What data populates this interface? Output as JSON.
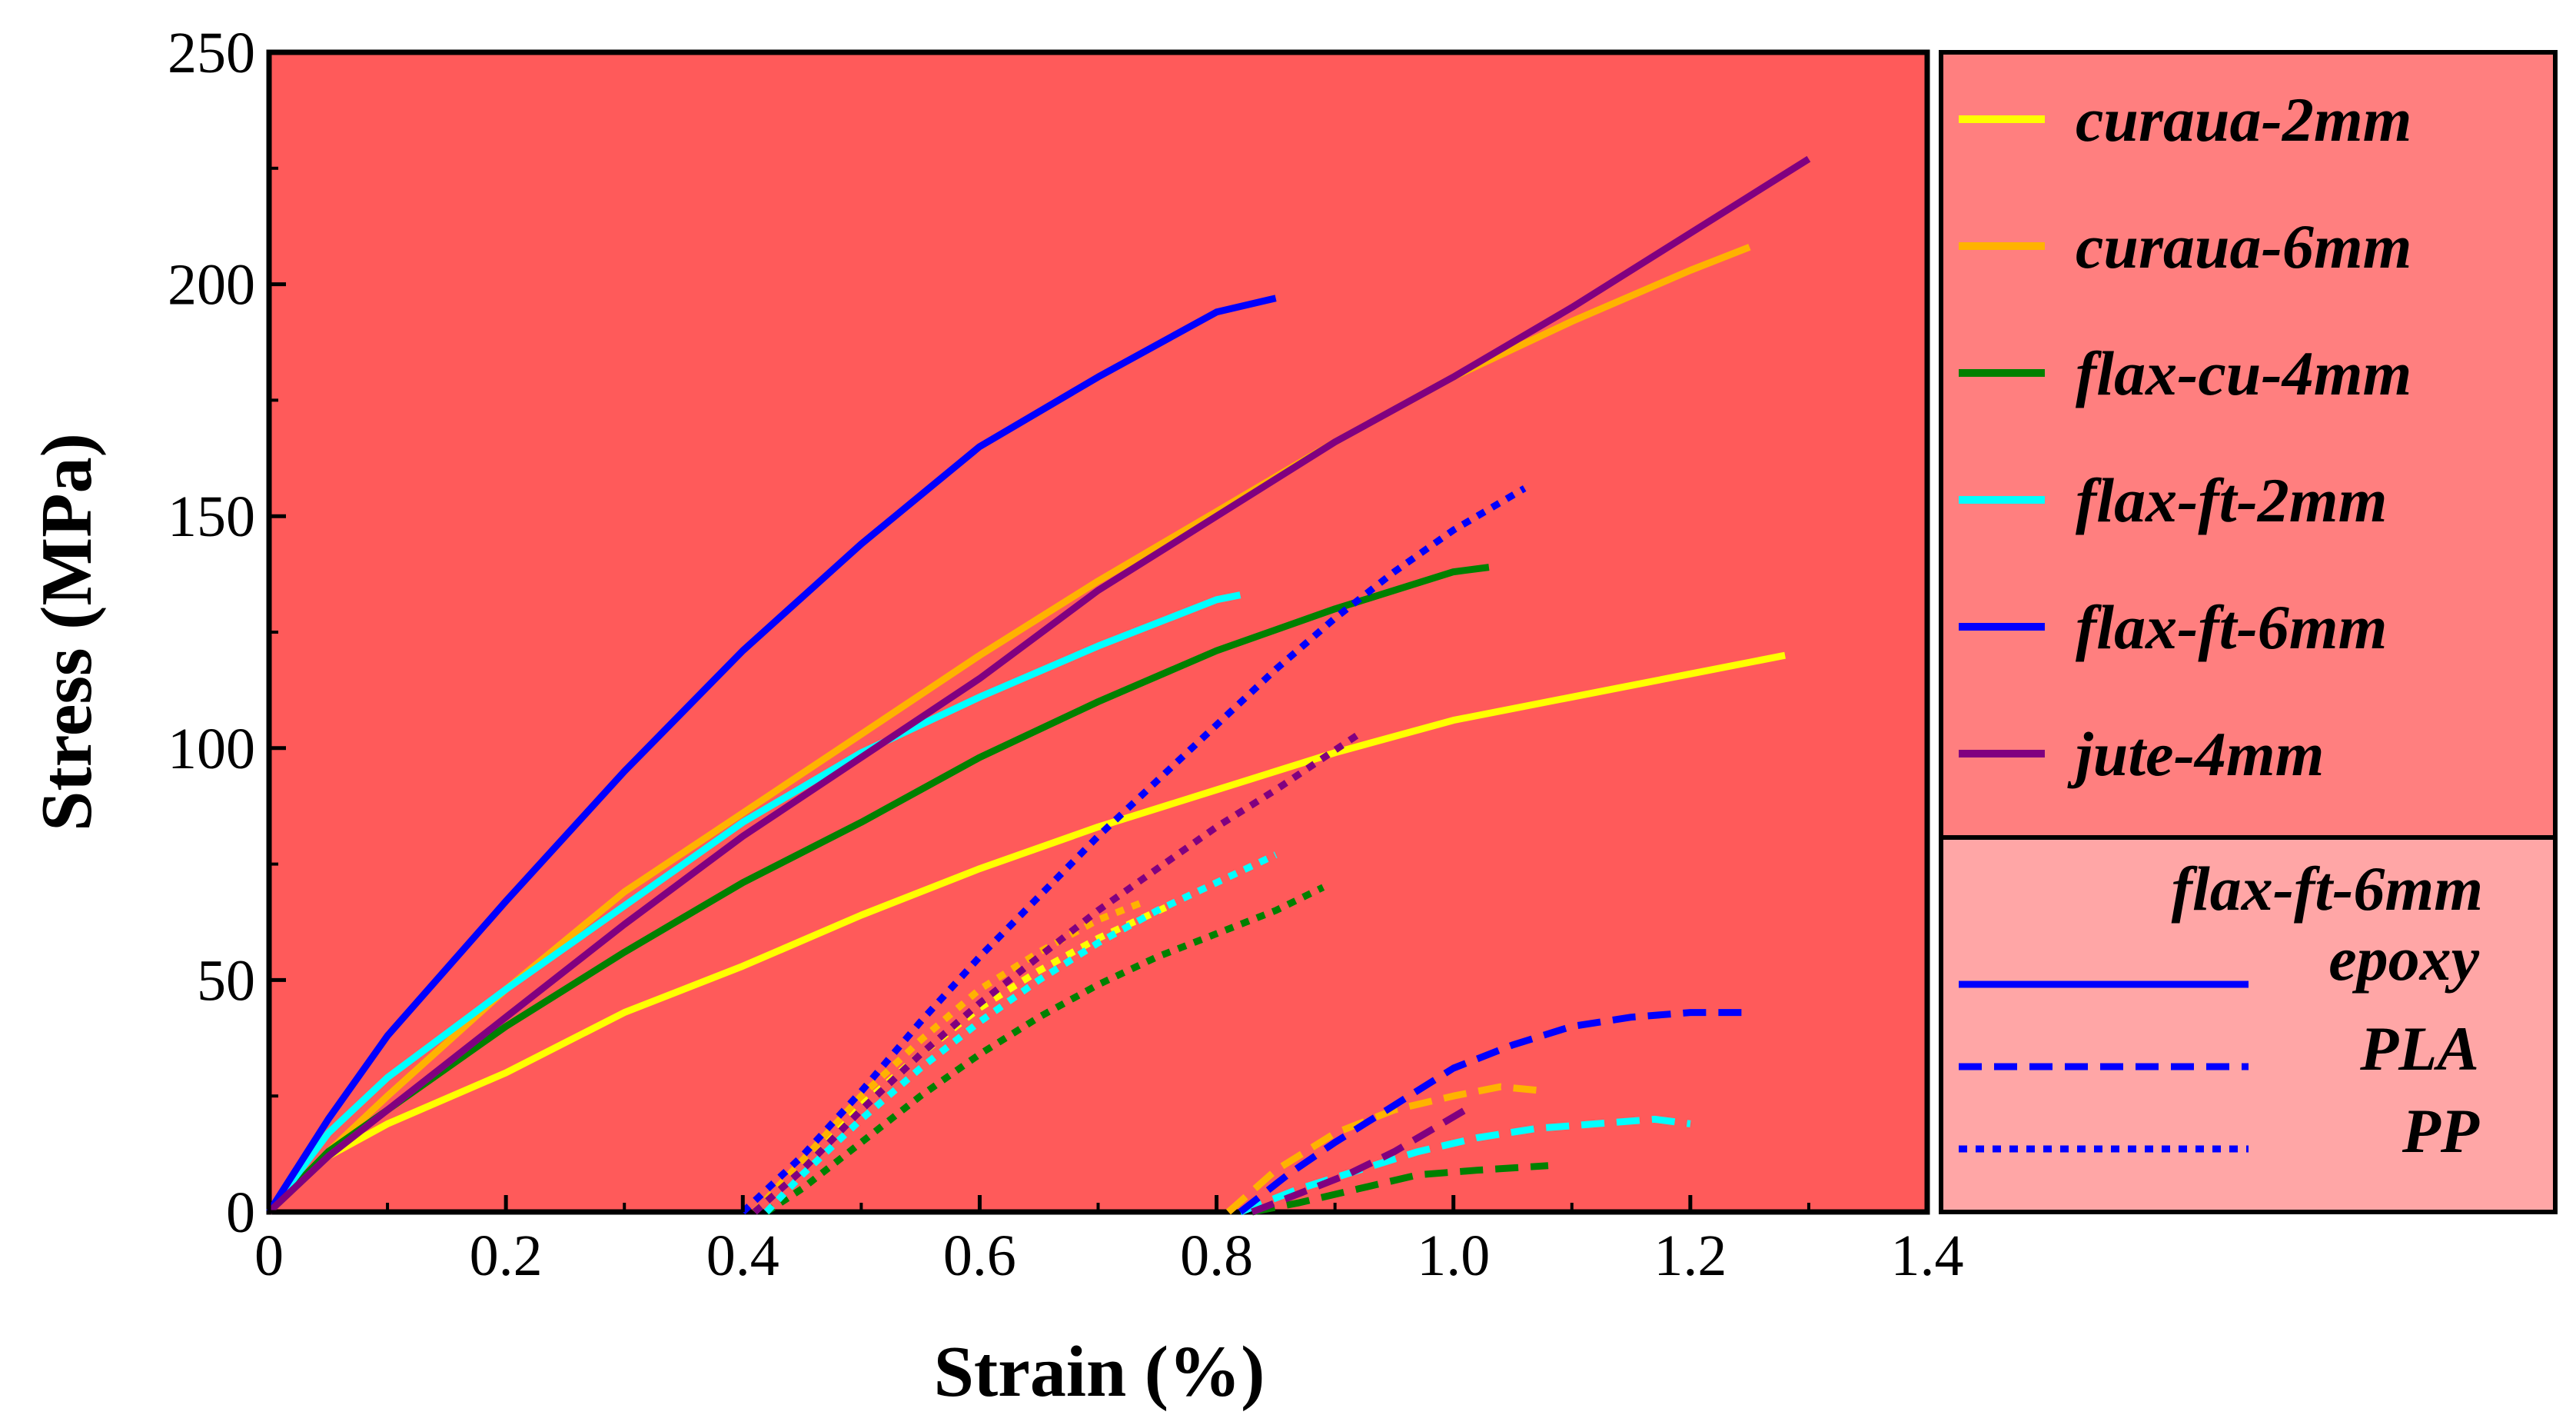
{
  "chart_data": {
    "type": "line",
    "title": "",
    "xlabel": "Strain (%)",
    "ylabel": "Stress (MPa)",
    "xlim": [
      0,
      1.4
    ],
    "ylim": [
      0,
      250
    ],
    "xticks": [
      "0",
      "0.2",
      "0.4",
      "0.6",
      "0.8",
      "1.0",
      "1.2",
      "1.4"
    ],
    "yticks": [
      "0",
      "50",
      "100",
      "150",
      "200",
      "250"
    ],
    "grid": false,
    "background_color": "#ff5a5a",
    "legend_background_color": "#ff7f7f",
    "legend_lower_background_color": "#ffa6a6",
    "legend_placement": "right",
    "legend_fibers": [
      {
        "label": "curaua-2mm",
        "color": "#ffff00"
      },
      {
        "label": "curaua-6mm",
        "color": "#ffb300"
      },
      {
        "label": "flax-cu-4mm",
        "color": "#008000"
      },
      {
        "label": "flax-ft-2mm",
        "color": "#00ffff"
      },
      {
        "label": "flax-ft-6mm",
        "color": "#0000ff"
      },
      {
        "label": "jute-4mm",
        "color": "#800080"
      }
    ],
    "legend_matrix_title": "flax-ft-6mm",
    "legend_matrices": [
      {
        "label": "epoxy",
        "style": "solid",
        "color": "#0000ff"
      },
      {
        "label": "PLA",
        "style": "dashed",
        "color": "#0000ff"
      },
      {
        "label": "PP",
        "style": "dotted",
        "color": "#0000ff"
      }
    ],
    "series": [
      {
        "name": "curaua-2mm epoxy",
        "color": "#ffff00",
        "style": "solid",
        "x": [
          0,
          0.05,
          0.1,
          0.2,
          0.3,
          0.4,
          0.5,
          0.6,
          0.7,
          0.8,
          0.9,
          1.0,
          1.1,
          1.2,
          1.28
        ],
        "y": [
          0,
          12,
          19,
          30,
          43,
          53,
          64,
          74,
          83,
          91,
          99,
          106,
          111,
          116,
          120
        ]
      },
      {
        "name": "curaua-6mm epoxy",
        "color": "#ffb300",
        "style": "solid",
        "x": [
          0,
          0.05,
          0.1,
          0.2,
          0.3,
          0.4,
          0.5,
          0.6,
          0.7,
          0.8,
          0.9,
          1.0,
          1.1,
          1.2,
          1.25
        ],
        "y": [
          0,
          13,
          25,
          48,
          69,
          86,
          103,
          120,
          136,
          151,
          166,
          180,
          192,
          203,
          208
        ]
      },
      {
        "name": "flax-cu-4mm epoxy",
        "color": "#008000",
        "style": "solid",
        "x": [
          0,
          0.05,
          0.1,
          0.2,
          0.3,
          0.4,
          0.5,
          0.6,
          0.7,
          0.8,
          0.9,
          1.0,
          1.03
        ],
        "y": [
          0,
          13,
          22,
          40,
          56,
          71,
          84,
          98,
          110,
          121,
          130,
          138,
          139
        ]
      },
      {
        "name": "flax-ft-2mm epoxy",
        "color": "#00ffff",
        "style": "solid",
        "x": [
          0,
          0.05,
          0.1,
          0.2,
          0.3,
          0.4,
          0.5,
          0.6,
          0.7,
          0.8,
          0.82
        ],
        "y": [
          0,
          17,
          29,
          48,
          66,
          84,
          99,
          111,
          122,
          132,
          133
        ]
      },
      {
        "name": "flax-ft-6mm epoxy",
        "color": "#0000ff",
        "style": "solid",
        "x": [
          0,
          0.05,
          0.1,
          0.2,
          0.3,
          0.4,
          0.5,
          0.6,
          0.7,
          0.8,
          0.85
        ],
        "y": [
          0,
          20,
          38,
          67,
          95,
          121,
          144,
          165,
          180,
          194,
          197
        ]
      },
      {
        "name": "jute-4mm epoxy",
        "color": "#800080",
        "style": "solid",
        "x": [
          0,
          0.05,
          0.1,
          0.2,
          0.3,
          0.4,
          0.5,
          0.6,
          0.7,
          0.8,
          0.9,
          1.0,
          1.1,
          1.2,
          1.3
        ],
        "y": [
          0,
          12,
          22,
          42,
          62,
          81,
          98,
          115,
          134,
          150,
          166,
          180,
          195,
          211,
          227
        ]
      },
      {
        "name": "curaua-2mm PP",
        "color": "#ffff00",
        "style": "dotted",
        "x": [
          0.41,
          0.45,
          0.5,
          0.55,
          0.6,
          0.65,
          0.7,
          0.76
        ],
        "y": [
          0,
          10,
          23,
          34,
          44,
          52,
          59,
          66
        ]
      },
      {
        "name": "curaua-6mm PP",
        "color": "#ffb300",
        "style": "dotted",
        "x": [
          0.41,
          0.45,
          0.5,
          0.55,
          0.6,
          0.65,
          0.7,
          0.74
        ],
        "y": [
          0,
          11,
          25,
          37,
          48,
          56,
          63,
          67
        ]
      },
      {
        "name": "flax-cu-4mm PP",
        "color": "#008000",
        "style": "dotted",
        "x": [
          0.42,
          0.45,
          0.5,
          0.55,
          0.6,
          0.65,
          0.7,
          0.75,
          0.8,
          0.85,
          0.89
        ],
        "y": [
          0,
          5,
          15,
          25,
          34,
          42,
          49,
          55,
          60,
          65,
          70
        ]
      },
      {
        "name": "flax-ft-2mm PP",
        "color": "#00ffff",
        "style": "dotted",
        "x": [
          0.42,
          0.45,
          0.5,
          0.55,
          0.6,
          0.65,
          0.7,
          0.75,
          0.8,
          0.85
        ],
        "y": [
          0,
          8,
          20,
          31,
          41,
          50,
          58,
          65,
          71,
          77
        ]
      },
      {
        "name": "flax-ft-6mm PP",
        "color": "#0000ff",
        "style": "dotted",
        "x": [
          0.4,
          0.45,
          0.5,
          0.55,
          0.6,
          0.65,
          0.7,
          0.75,
          0.8,
          0.85,
          0.9,
          0.95,
          1.0,
          1.06
        ],
        "y": [
          0,
          12,
          26,
          41,
          55,
          68,
          81,
          93,
          105,
          117,
          128,
          138,
          147,
          156
        ]
      },
      {
        "name": "jute-4mm PP",
        "color": "#800080",
        "style": "dotted",
        "x": [
          0.41,
          0.45,
          0.5,
          0.55,
          0.6,
          0.65,
          0.7,
          0.75,
          0.8,
          0.85,
          0.92
        ],
        "y": [
          0,
          9,
          22,
          34,
          45,
          55,
          65,
          74,
          83,
          91,
          103
        ]
      },
      {
        "name": "curaua-6mm PLA",
        "color": "#ffb300",
        "style": "dashed",
        "x": [
          0.81,
          0.85,
          0.9,
          0.95,
          1.0,
          1.04,
          1.08
        ],
        "y": [
          0,
          9,
          17,
          22,
          25,
          27,
          26
        ]
      },
      {
        "name": "flax-cu-4mm PLA",
        "color": "#008000",
        "style": "dashed",
        "x": [
          0.83,
          0.87,
          0.92,
          0.97,
          1.02,
          1.08
        ],
        "y": [
          0,
          2,
          5,
          8,
          9,
          10
        ]
      },
      {
        "name": "flax-ft-2mm PLA",
        "color": "#00ffff",
        "style": "dashed",
        "x": [
          0.82,
          0.87,
          0.92,
          0.97,
          1.02,
          1.07,
          1.12,
          1.17,
          1.2
        ],
        "y": [
          0,
          5,
          9,
          13,
          16,
          18,
          19,
          20,
          19
        ]
      },
      {
        "name": "flax-ft-6mm PLA",
        "color": "#0000ff",
        "style": "dashed",
        "x": [
          0.82,
          0.86,
          0.9,
          0.95,
          1.0,
          1.05,
          1.1,
          1.15,
          1.2,
          1.25
        ],
        "y": [
          0,
          8,
          15,
          23,
          31,
          36,
          40,
          42,
          43,
          43
        ]
      },
      {
        "name": "jute-4mm PLA",
        "color": "#800080",
        "style": "dashed",
        "x": [
          0.83,
          0.87,
          0.91,
          0.95,
          0.99,
          1.01
        ],
        "y": [
          0,
          4,
          8,
          13,
          19,
          22
        ]
      }
    ]
  }
}
